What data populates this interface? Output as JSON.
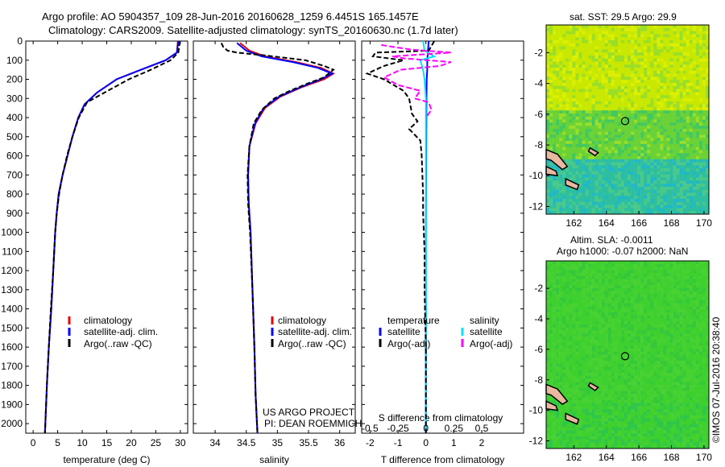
{
  "header": {
    "line1": "Argo profile: AO 5904357_109 28-Jun-2016 20160628_1259 6.4451S 165.1457E",
    "line2": "Climatology: CARS2009. Satellite-adjusted climatology: synTS_20160630.nc (1.7d later)"
  },
  "legend_main": {
    "climatology": "climatology",
    "satellite": "satellite-adj. clim.",
    "argo": "Argo(..raw -QC)"
  },
  "legend_diff": {
    "temperature": "temperature",
    "salinity": "salinity",
    "satellite": "satellite",
    "argo": "Argo(-adj)"
  },
  "project": {
    "line1": "US ARGO PROJECT",
    "line2": "PI: DEAN ROEMMICH"
  },
  "maps": {
    "sst_title": "sat. SST: 29.5 Argo: 29.9",
    "sla_title1": "Altim. SLA: -0.0011",
    "sla_title2": "Argo h1000: -0.07 h2000: NaN",
    "x_ticks": [
      "162",
      "164",
      "166",
      "168",
      "170"
    ],
    "y_ticks": [
      "-2",
      "-4",
      "-6",
      "-8",
      "-10",
      "-12"
    ]
  },
  "footer": {
    "credit": "©IMOS 07-Jul-2016 20:38:40"
  },
  "colors": {
    "climatology": "#e00000",
    "satellite": "#0000ff",
    "argo": "#000000",
    "sal_satellite": "#00e0ff",
    "sal_argo": "#ff00ff"
  },
  "chart_data": [
    {
      "type": "line",
      "xlabel": "temperature (deg C)",
      "ylim": [
        2050,
        0
      ],
      "xlim": [
        -1.5,
        31.5
      ],
      "x_ticks": [
        "0",
        "5",
        "10",
        "15",
        "20",
        "25",
        "30"
      ],
      "y_ticks": [
        "0",
        "100",
        "200",
        "300",
        "400",
        "500",
        "600",
        "700",
        "800",
        "900",
        "1000",
        "1100",
        "1200",
        "1300",
        "1400",
        "1500",
        "1600",
        "1700",
        "1800",
        "1900",
        "2000"
      ],
      "series": [
        {
          "name": "climatology",
          "points": [
            [
              29.5,
              0
            ],
            [
              29.3,
              60
            ],
            [
              27,
              100
            ],
            [
              22,
              150
            ],
            [
              17,
              200
            ],
            [
              13,
              270
            ],
            [
              10.5,
              330
            ],
            [
              9.2,
              400
            ],
            [
              8,
              500
            ],
            [
              7,
              600
            ],
            [
              6,
              700
            ],
            [
              5.2,
              800
            ],
            [
              4.8,
              900
            ],
            [
              4.5,
              1000
            ],
            [
              4.1,
              1200
            ],
            [
              3.7,
              1400
            ],
            [
              3.2,
              1600
            ],
            [
              2.8,
              1800
            ],
            [
              2.4,
              2050
            ]
          ]
        },
        {
          "name": "satellite-adj. clim.",
          "points": [
            [
              29.6,
              0
            ],
            [
              29.3,
              60
            ],
            [
              27,
              100
            ],
            [
              22,
              150
            ],
            [
              17,
              200
            ],
            [
              13,
              270
            ],
            [
              10.5,
              330
            ],
            [
              9.2,
              400
            ],
            [
              8,
              500
            ],
            [
              7,
              600
            ],
            [
              6,
              700
            ],
            [
              5.2,
              800
            ],
            [
              4.8,
              900
            ],
            [
              4.5,
              1000
            ],
            [
              4.1,
              1200
            ],
            [
              3.7,
              1400
            ],
            [
              3.2,
              1600
            ],
            [
              2.8,
              1800
            ],
            [
              2.4,
              2050
            ]
          ]
        },
        {
          "name": "Argo(..raw -QC)",
          "points": [
            [
              29.9,
              0
            ],
            [
              29.6,
              60
            ],
            [
              28,
              100
            ],
            [
              24,
              150
            ],
            [
              19.5,
              200
            ],
            [
              14.5,
              270
            ],
            [
              11,
              320
            ],
            [
              9.3,
              400
            ],
            [
              8,
              500
            ],
            [
              6.9,
              600
            ],
            [
              6,
              700
            ],
            [
              5.3,
              800
            ],
            [
              4.8,
              900
            ],
            [
              4.5,
              1000
            ],
            [
              4.1,
              1200
            ],
            [
              3.6,
              1400
            ],
            [
              3.2,
              1600
            ],
            [
              2.8,
              1800
            ],
            [
              2.4,
              2050
            ]
          ]
        }
      ]
    },
    {
      "type": "line",
      "xlabel": "salinity",
      "ylim": [
        2050,
        0
      ],
      "xlim": [
        33.65,
        36.25
      ],
      "x_ticks": [
        "34",
        "34.5",
        "35",
        "35.5",
        "36"
      ],
      "series": [
        {
          "name": "climatology",
          "points": [
            [
              34.4,
              10
            ],
            [
              34.55,
              50
            ],
            [
              34.8,
              80
            ],
            [
              35.3,
              110
            ],
            [
              35.7,
              140
            ],
            [
              35.9,
              170
            ],
            [
              35.75,
              200
            ],
            [
              35.4,
              240
            ],
            [
              35.05,
              290
            ],
            [
              34.8,
              350
            ],
            [
              34.65,
              430
            ],
            [
              34.55,
              550
            ],
            [
              34.53,
              700
            ],
            [
              34.54,
              850
            ],
            [
              34.57,
              1000
            ],
            [
              34.6,
              1300
            ],
            [
              34.63,
              1600
            ],
            [
              34.65,
              1850
            ],
            [
              34.68,
              2050
            ]
          ]
        },
        {
          "name": "satellite-adj. clim.",
          "points": [
            [
              34.35,
              10
            ],
            [
              34.5,
              50
            ],
            [
              34.75,
              80
            ],
            [
              35.25,
              110
            ],
            [
              35.65,
              140
            ],
            [
              35.88,
              170
            ],
            [
              35.7,
              200
            ],
            [
              35.38,
              240
            ],
            [
              35.03,
              290
            ],
            [
              34.78,
              350
            ],
            [
              34.64,
              430
            ],
            [
              34.55,
              550
            ],
            [
              34.53,
              700
            ],
            [
              34.54,
              850
            ],
            [
              34.57,
              1000
            ],
            [
              34.6,
              1300
            ],
            [
              34.63,
              1600
            ],
            [
              34.65,
              1850
            ],
            [
              34.68,
              2050
            ]
          ]
        },
        {
          "name": "Argo(..raw -QC)",
          "points": [
            [
              34.1,
              10
            ],
            [
              34.13,
              30
            ],
            [
              34.2,
              50
            ],
            [
              34.35,
              60
            ],
            [
              34.8,
              75
            ],
            [
              35.45,
              100
            ],
            [
              35.75,
              130
            ],
            [
              35.9,
              150
            ],
            [
              35.75,
              190
            ],
            [
              35.5,
              220
            ],
            [
              35.2,
              260
            ],
            [
              34.95,
              300
            ],
            [
              34.75,
              360
            ],
            [
              34.62,
              430
            ],
            [
              34.55,
              550
            ],
            [
              34.52,
              700
            ],
            [
              34.53,
              850
            ],
            [
              34.56,
              1000
            ],
            [
              34.6,
              1300
            ],
            [
              34.63,
              1600
            ],
            [
              34.65,
              1850
            ],
            [
              34.68,
              2050
            ]
          ]
        }
      ]
    },
    {
      "type": "line",
      "xlabel": "T difference from climatology",
      "x2label": "S difference from climatology",
      "ylim": [
        2050,
        0
      ],
      "xlim": [
        -2.3,
        3.5
      ],
      "x_ticks": [
        "-2",
        "-1",
        "0",
        "1",
        "2"
      ],
      "x2_ticks": [
        "-0.5",
        "-0.25",
        "0",
        "0.25",
        "0.5"
      ],
      "series": [
        {
          "name": "temperature satellite",
          "points": [
            [
              0.1,
              0
            ],
            [
              0.05,
              100
            ],
            [
              0.05,
              150
            ],
            [
              0.03,
              200
            ],
            [
              0.02,
              300
            ],
            [
              0.01,
              600
            ],
            [
              0,
              1000
            ],
            [
              0,
              2050
            ]
          ]
        },
        {
          "name": "temperature Argo(-adj)",
          "points": [
            [
              0.3,
              0
            ],
            [
              0.1,
              50
            ],
            [
              -1.8,
              60
            ],
            [
              -1.9,
              80
            ],
            [
              -0.8,
              100
            ],
            [
              -1.5,
              130
            ],
            [
              -2.1,
              170
            ],
            [
              -1.5,
              200
            ],
            [
              -0.8,
              260
            ],
            [
              -0.6,
              300
            ],
            [
              -0.5,
              380
            ],
            [
              -0.3,
              420
            ],
            [
              -0.6,
              460
            ],
            [
              -0.2,
              520
            ],
            [
              -0.15,
              600
            ],
            [
              -0.1,
              800
            ],
            [
              -0.1,
              900
            ],
            [
              -0.05,
              1100
            ],
            [
              -0.05,
              1300
            ],
            [
              0,
              1600
            ],
            [
              0,
              2050
            ]
          ]
        },
        {
          "name": "salinity satellite",
          "points": [
            [
              -0.1,
              0
            ],
            [
              -0.05,
              50
            ],
            [
              0.3,
              80
            ],
            [
              -0.2,
              100
            ],
            [
              -0.1,
              150
            ],
            [
              -0.05,
              200
            ],
            [
              0,
              300
            ],
            [
              0,
              2050
            ]
          ]
        },
        {
          "name": "salinity Argo(-adj)",
          "points": [
            [
              -1.6,
              20
            ],
            [
              -1.2,
              30
            ],
            [
              -0.5,
              45
            ],
            [
              0.9,
              60
            ],
            [
              -1.2,
              80
            ],
            [
              -0.8,
              90
            ],
            [
              0.9,
              110
            ],
            [
              0.5,
              130
            ],
            [
              -0.9,
              150
            ],
            [
              -1.5,
              190
            ],
            [
              -1.0,
              230
            ],
            [
              -0.2,
              260
            ],
            [
              -0.4,
              300
            ],
            [
              0.1,
              320
            ],
            [
              0.2,
              360
            ],
            [
              0,
              400
            ]
          ]
        }
      ]
    },
    {
      "type": "heatmap",
      "title": "sat. SST: 29.5 Argo: 29.9",
      "xlim": [
        160.3,
        170.3
      ],
      "ylim": [
        -12.5,
        -0.2
      ],
      "argo_location": [
        165.15,
        -6.45
      ]
    },
    {
      "type": "heatmap",
      "title": "Altim. SLA: -0.0011",
      "xlim": [
        160.3,
        170.3
      ],
      "ylim": [
        -12.5,
        -0.2
      ],
      "argo_location": [
        165.15,
        -6.45
      ]
    }
  ]
}
